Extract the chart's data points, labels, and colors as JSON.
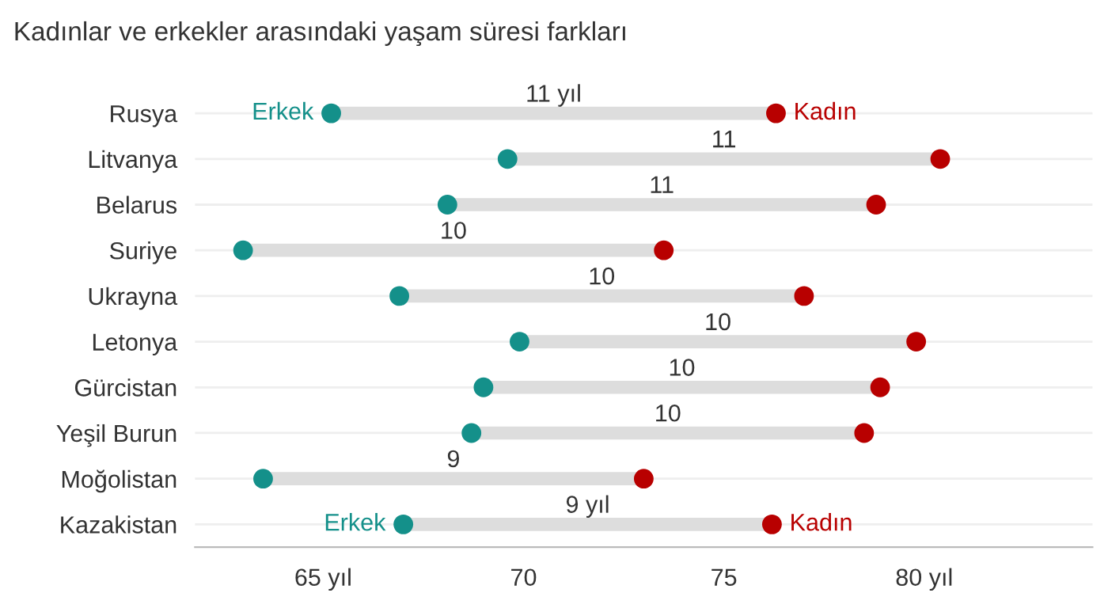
{
  "chart_data": {
    "type": "scatter",
    "title": "Kadınlar ve erkekler arasındaki yaşam süresi farkları",
    "orientation": "horizontal",
    "categories": [
      "Rusya",
      "Litvanya",
      "Belarus",
      "Suriye",
      "Ukrayna",
      "Letonya",
      "Gürcistan",
      "Yeşil Burun",
      "Moğolistan",
      "Kazakistan"
    ],
    "series": [
      {
        "name": "Erkek",
        "color": "#14908a",
        "values": [
          65.2,
          69.6,
          68.1,
          63.0,
          66.9,
          69.9,
          69.0,
          68.7,
          63.5,
          67.0
        ]
      },
      {
        "name": "Kadın",
        "color": "#b80000",
        "values": [
          76.3,
          80.4,
          78.8,
          73.5,
          77.0,
          79.8,
          78.9,
          78.5,
          73.0,
          76.2
        ]
      }
    ],
    "xlim": [
      61.8,
      84.2
    ],
    "xticks": [
      {
        "value": 65,
        "label": "65 yıl"
      },
      70,
      75,
      {
        "value": 80,
        "label": "80 yıl"
      }
    ],
    "grid": "y",
    "marker": "circle",
    "legend": false,
    "annotations": [
      "11 yıl",
      "11",
      "11",
      "10",
      "10",
      "10",
      "10",
      "10",
      "9",
      "9 yıl"
    ]
  }
}
